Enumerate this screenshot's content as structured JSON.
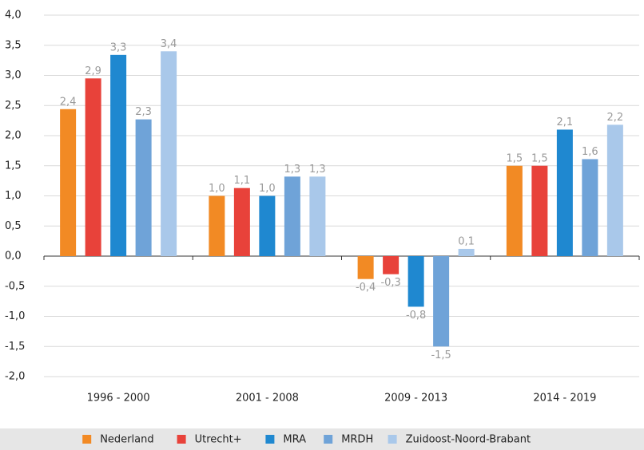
{
  "chart_data": {
    "type": "bar",
    "categories": [
      "1996 - 2000",
      "2001 - 2008",
      "2009 - 2013",
      "2014 - 2019"
    ],
    "series": [
      {
        "name": "Nederland",
        "color": "#f28a24",
        "values": [
          2.44,
          1.0,
          -0.38,
          1.5
        ],
        "value_labels": [
          "2,4",
          "1,0",
          "-0,4",
          "1,5"
        ]
      },
      {
        "name": "Utrecht+",
        "color": "#e8423a",
        "values": [
          2.95,
          1.13,
          -0.3,
          1.5
        ],
        "value_labels": [
          "2,9",
          "1,1",
          "-0,3",
          "1,5"
        ]
      },
      {
        "name": "MRA",
        "color": "#1f88d0",
        "values": [
          3.34,
          1.0,
          -0.84,
          2.1
        ],
        "value_labels": [
          "3,3",
          "1,0",
          "-0,8",
          "2,1"
        ]
      },
      {
        "name": "MRDH",
        "color": "#6fa3d8",
        "values": [
          2.27,
          1.32,
          -1.5,
          1.61
        ],
        "value_labels": [
          "2,3",
          "1,3",
          "-1,5",
          "1,6"
        ]
      },
      {
        "name": "Zuidoost-Noord-Brabant",
        "color": "#a9c8ea",
        "values": [
          3.4,
          1.32,
          0.12,
          2.18
        ],
        "value_labels": [
          "3,4",
          "1,3",
          "0,1",
          "2,2"
        ]
      }
    ],
    "ylim": [
      -2,
      4
    ],
    "yticks": [
      {
        "value": -2,
        "label": "-2,0"
      },
      {
        "value": -1.5,
        "label": "-1,5"
      },
      {
        "value": -1,
        "label": "-1,0"
      },
      {
        "value": -0.5,
        "label": "-0,5"
      },
      {
        "value": 0,
        "label": "0,0"
      },
      {
        "value": 0.5,
        "label": "0,5"
      },
      {
        "value": 1,
        "label": "1,0"
      },
      {
        "value": 1.5,
        "label": "1,5"
      },
      {
        "value": 2,
        "label": "2,0"
      },
      {
        "value": 2.5,
        "label": "2,5"
      },
      {
        "value": 3,
        "label": "3,0"
      },
      {
        "value": 3.5,
        "label": "3,5"
      },
      {
        "value": 4,
        "label": "4,0"
      }
    ],
    "grid": true,
    "legend": "bottom"
  }
}
